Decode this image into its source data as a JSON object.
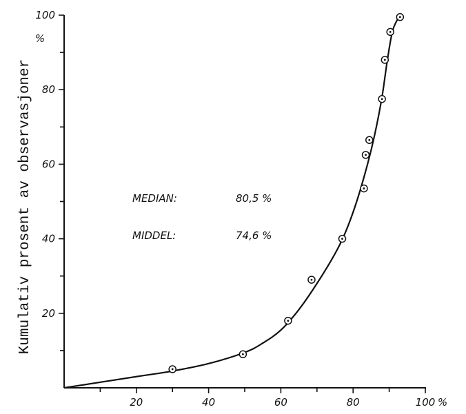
{
  "chart_data": {
    "type": "scatter",
    "title": "",
    "xlabel": "",
    "ylabel": "Kumulativ prosent av observasjoner",
    "xlim": [
      0,
      100
    ],
    "ylim": [
      0,
      100
    ],
    "x_ticks": [
      20,
      40,
      60,
      80,
      100
    ],
    "y_ticks": [
      20,
      40,
      60,
      80,
      100
    ],
    "x_unit": "%",
    "y_unit": "%",
    "grid": false,
    "points": [
      {
        "x": 30,
        "y": 5
      },
      {
        "x": 49.5,
        "y": 9
      },
      {
        "x": 62,
        "y": 18
      },
      {
        "x": 68.5,
        "y": 29
      },
      {
        "x": 77,
        "y": 40
      },
      {
        "x": 83,
        "y": 53.5
      },
      {
        "x": 83.5,
        "y": 62.5
      },
      {
        "x": 84.5,
        "y": 66.5
      },
      {
        "x": 88,
        "y": 77.5
      },
      {
        "x": 88.8,
        "y": 88
      },
      {
        "x": 90.3,
        "y": 95.5
      },
      {
        "x": 93,
        "y": 99.5
      }
    ],
    "fitted_curve": [
      [
        0,
        0
      ],
      [
        20,
        3
      ],
      [
        30,
        4.5
      ],
      [
        40,
        6.5
      ],
      [
        50,
        9.5
      ],
      [
        55,
        12
      ],
      [
        60,
        15.5
      ],
      [
        65,
        21
      ],
      [
        70,
        28
      ],
      [
        75,
        36
      ],
      [
        78,
        42
      ],
      [
        81,
        50
      ],
      [
        84,
        60
      ],
      [
        86,
        68
      ],
      [
        88,
        78
      ],
      [
        89.5,
        88
      ],
      [
        91,
        96
      ],
      [
        93,
        100
      ]
    ],
    "annotations": [
      {
        "label": "MEDIAN:",
        "value": "80,5 %"
      },
      {
        "label": "MIDDEL:",
        "value": "74,6 %"
      }
    ]
  }
}
